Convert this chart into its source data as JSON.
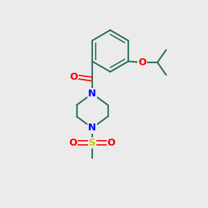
{
  "background_color": "#ebebeb",
  "bond_color": "#2d6e5e",
  "atom_colors": {
    "O": "#ff0000",
    "N": "#0000ff",
    "S": "#cccc00",
    "C": "#2d6e5e"
  }
}
